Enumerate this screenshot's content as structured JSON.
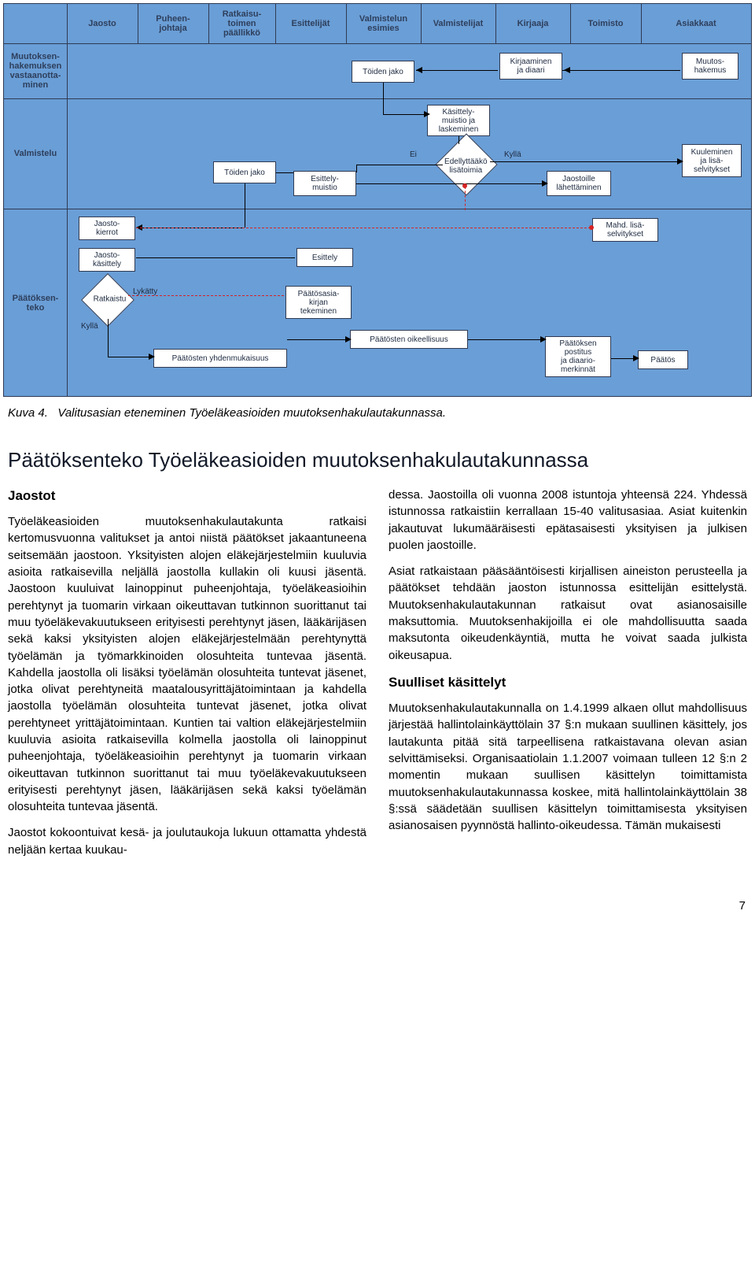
{
  "diagram": {
    "columns": [
      "Jaosto",
      "Puheen-\njohtaja",
      "Ratkaisu-\ntoimen\npäällikkö",
      "Esittelijät",
      "Valmistelun\nesimies",
      "Valmistelijat",
      "Kirjaaja",
      "Toimisto",
      "Asiakkaat"
    ],
    "rows": [
      "Muutoksen-\nhakemuksen\nvastaanotta-\nminen",
      "Valmistelu",
      "Päätöksen-\nteko"
    ],
    "boxes": {
      "toiden_jako_top": "Töiden jako",
      "kirjaaminen": "Kirjaaminen\nja diaari",
      "muutos_hakemus": "Muutos-\nhakemus",
      "kasittely": "Käsittely-\nmuistio ja\nlaskeminen",
      "toiden_jako_mid": "Töiden jako",
      "esittelymuistio": "Esittely-\nmuistio",
      "jaostoille": "Jaostoille\nlähettäminen",
      "kuuleminen": "Kuuleminen\nja lisä-\nselvitykset",
      "jaostokierrot": "Jaosto-\nkierrot",
      "jaostokasittely": "Jaosto-\nkäsittely",
      "esittely": "Esittely",
      "mahd": "Mahd. lisä-\nselvitykset",
      "paatosasikirja": "Päätösasia-\nkirjan\ntekeminen",
      "paatosten_yhden": "Päätösten yhdenmukaisuus",
      "paatosten_oik": "Päätösten oikeellisuus",
      "paatoksen_postitus": "Päätöksen\npostitus\nja diaario-\nmerkinnät",
      "paatos": "Päätös"
    },
    "decision": {
      "edellyttaako": "Edellyttääkö\nlisätoimia",
      "ratkaistu": "Ratkaistu"
    },
    "labels": {
      "ei": "Ei",
      "kylla": "Kyllä",
      "kylla2": "Kyllä",
      "lykatty": "Lykätty"
    },
    "colors": {
      "bg": "#6a9ed6",
      "border": "#2f3a53",
      "dash": "#d52323"
    }
  },
  "caption_label": "Kuva 4.",
  "caption_text": "Valitusasian eteneminen Työeläkeasioiden muutoksenhakulautakunnassa.",
  "title": "Päätöksenteko Työeläkeasioiden muutoksenhakulautakunnassa",
  "left": {
    "h": "Jaostot",
    "p1": "Työeläkeasioiden muutoksenhakulautakunta ratkaisi kertomusvuonna valitukset ja antoi niistä päätökset jakaantuneena seitsemään jaostoon. Yksityisten alojen eläkejärjestelmiin kuuluvia asioita ratkaisevilla neljällä jaostolla kullakin oli kuusi jäsentä. Jaostoon kuuluivat lainoppinut puheenjohtaja, työeläkeasioihin perehtynyt ja tuomarin virkaan oikeuttavan tutkinnon suorittanut tai muu työeläkevakuutukseen erityisesti perehtynyt jäsen, lääkärijäsen sekä kaksi yksityisten alojen eläkejärjestelmään perehtynyttä työelämän ja työmarkkinoiden olosuhteita tuntevaa jäsentä. Kahdella jaostolla oli lisäksi työelämän olosuhteita tuntevat jäsenet, jotka olivat perehtyneitä maatalousyrittäjätoimintaan ja kahdella jaostolla työelämän olosuhteita tuntevat jäsenet, jotka olivat perehtyneet yrittäjätoimintaan. Kuntien tai valtion eläkejärjestelmiin kuuluvia asioita ratkaisevilla kolmella jaostolla oli lainoppinut puheenjohtaja, työeläkeasioihin perehtynyt ja tuomarin virkaan oikeuttavan tutkinnon suorittanut tai muu työeläkevakuutukseen erityisesti perehtynyt jäsen, lääkärijäsen sekä kaksi työelämän olosuhteita tuntevaa jäsentä.",
    "p2": "Jaostot kokoontuivat kesä- ja joulutaukoja lukuun ottamatta yhdestä neljään kertaa kuukau-"
  },
  "right": {
    "p1": "dessa. Jaostoilla oli vuonna 2008 istuntoja yhteensä 224. Yhdessä istunnossa ratkaistiin kerrallaan 15-40 valitusasiaa. Asiat kuitenkin jakautuvat lukumääräisesti epätasaisesti yksityisen ja julkisen puolen jaostoille.",
    "p2": "Asiat ratkaistaan pääsääntöisesti kirjallisen aineiston perusteella ja päätökset tehdään jaoston istunnossa esittelijän esittelystä. Muutoksenhakulautakunnan ratkaisut ovat asianosaisille maksuttomia. Muutoksenhakijoilla ei ole mahdollisuutta saada maksutonta oikeudenkäyntiä, mutta he voivat saada julkista oikeusapua.",
    "h": "Suulliset käsittelyt",
    "p3": "Muutoksenhakulautakunnalla on 1.4.1999 alkaen ollut mahdollisuus järjestää hallintolainkäyttölain 37 §:n mukaan suullinen käsittely, jos lautakunta pitää sitä tarpeellisena ratkaistavana olevan asian selvittämiseksi. Organisaatiolain 1.1.2007 voimaan tulleen 12 §:n 2 momentin mukaan suullisen käsittelyn toimittamista muutoksenhakulautakunnassa koskee, mitä hallintolainkäyttölain 38 §:ssä säädetään suullisen käsittelyn toimittamisesta yksityisen asianosaisen pyynnöstä hallinto-oikeudessa. Tämän mukaisesti"
  },
  "page": "7"
}
